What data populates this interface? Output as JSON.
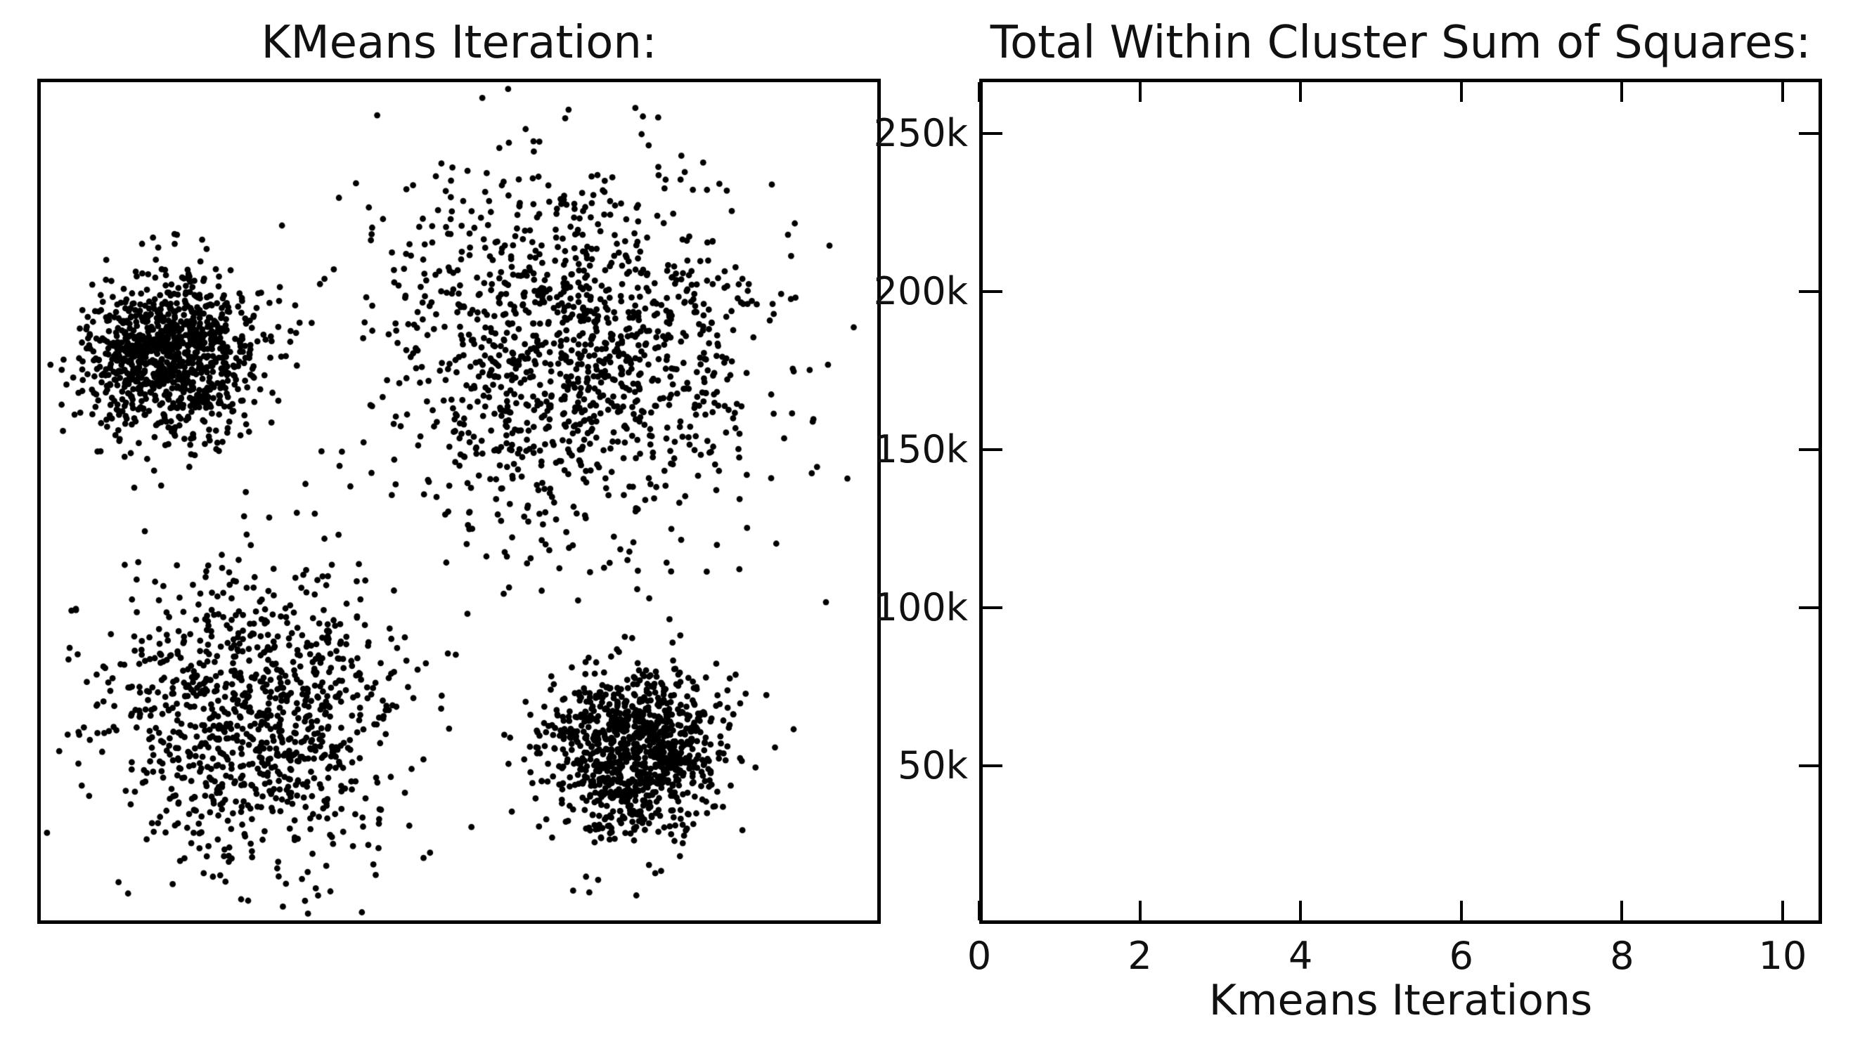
{
  "figure": {
    "background_color": "#ffffff",
    "foreground_color": "#000000",
    "text_color": "#111111"
  },
  "chart_data": [
    {
      "type": "scatter",
      "title": "KMeans Iteration:",
      "xlabel": "",
      "ylabel": "",
      "x_ticks": [],
      "y_ticks": [],
      "grid": false,
      "legend": "none",
      "marker": {
        "shape": "dot",
        "color": "#000000",
        "radius_px": 4.4
      },
      "coordinate_space": "normalized 0-1 within axes, x right, y down",
      "clusters": [
        {
          "name": "top-left-dense",
          "center": [
            0.155,
            0.33
          ],
          "std": [
            0.05,
            0.047
          ],
          "n": 1050
        },
        {
          "name": "top-right-sparse",
          "center": [
            0.635,
            0.325
          ],
          "std": [
            0.118,
            0.11
          ],
          "n": 1250
        },
        {
          "name": "bottom-left-medium",
          "center": [
            0.255,
            0.76
          ],
          "std": [
            0.092,
            0.088
          ],
          "n": 1000
        },
        {
          "name": "bottom-right-dense",
          "center": [
            0.715,
            0.8
          ],
          "std": [
            0.052,
            0.048
          ],
          "n": 1000
        }
      ],
      "random_seed": 7
    },
    {
      "type": "line",
      "title": "Total Within Cluster Sum of Squares:",
      "xlabel": "Kmeans Iterations",
      "ylabel": "",
      "x_tick_values": [
        0,
        2,
        4,
        6,
        8,
        10
      ],
      "x_tick_labels": [
        "0",
        "2",
        "4",
        "6",
        "8",
        "10"
      ],
      "y_tick_values": [
        50000,
        100000,
        150000,
        200000,
        250000
      ],
      "y_tick_labels": [
        "50k",
        "100k",
        "150k",
        "200k",
        "250k"
      ],
      "xlim": [
        0,
        10.49
      ],
      "ylim": [
        0,
        267333
      ],
      "grid": false,
      "legend": "none",
      "series": [],
      "note": "empty axes - no data plotted yet"
    }
  ]
}
